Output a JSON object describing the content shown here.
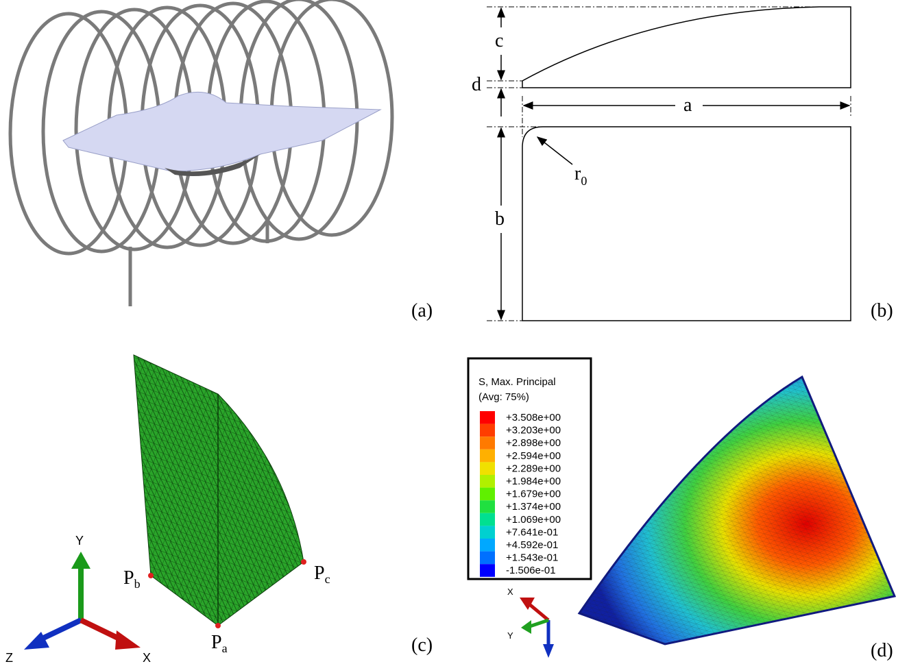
{
  "panels": {
    "a": {
      "label": "(a)"
    },
    "b": {
      "label": "(b)",
      "dimensions": {
        "c": "c",
        "d": "d",
        "a": "a",
        "b": "b",
        "r0": {
          "base": "r",
          "sub": "0"
        }
      }
    },
    "c": {
      "label": "(c)",
      "points": [
        {
          "base": "P",
          "sub": "b"
        },
        {
          "base": "P",
          "sub": "c"
        },
        {
          "base": "P",
          "sub": "a"
        }
      ],
      "axes": [
        "Y",
        "Z",
        "X"
      ]
    },
    "d": {
      "label": "(d)",
      "legend": {
        "title": "S, Max. Principal",
        "subtitle": "(Avg: 75%)",
        "entries": [
          "+3.508e+00",
          "+3.203e+00",
          "+2.898e+00",
          "+2.594e+00",
          "+2.289e+00",
          "+1.984e+00",
          "+1.679e+00",
          "+1.374e+00",
          "+1.069e+00",
          "+7.641e-01",
          "+4.592e-01",
          "+1.543e-01",
          "-1.506e-01"
        ]
      },
      "axes": [
        "X",
        "Y"
      ]
    }
  }
}
